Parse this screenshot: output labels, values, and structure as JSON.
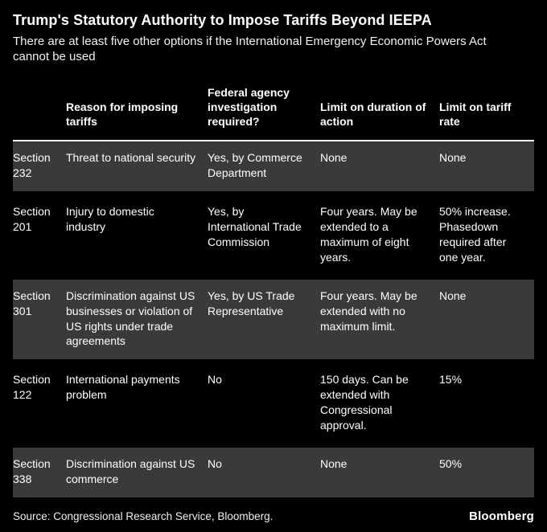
{
  "header": {
    "title": "Trump's Statutory Authority to Impose Tariffs Beyond IEEPA",
    "subtitle": "There are at least five other options if the International Emergency Economic Powers Act cannot be used"
  },
  "footer": {
    "source": "Source: Congressional Research Service, Bloomberg.",
    "brand": "Bloomberg"
  },
  "chart_data": {
    "type": "table",
    "title": "Trump's Statutory Authority to Impose Tariffs Beyond IEEPA",
    "subtitle": "There are at least five other options if the International Emergency Economic Powers Act cannot be used",
    "columns": [
      "",
      "Reason for imposing tariffs",
      "Federal agency investigation required?",
      "Limit on duration of action",
      "Limit on tariff rate"
    ],
    "rows": [
      [
        "Section 232",
        "Threat to national security",
        "Yes, by Commerce Department",
        "None",
        "None"
      ],
      [
        "Section 201",
        "Injury to domestic industry",
        "Yes, by International Trade Commission",
        "Four years. May be extended to a maximum of eight years.",
        "50% increase. Phasedown required after one year."
      ],
      [
        "Section 301",
        "Discrimination against US businesses or violation of US rights under trade agreements",
        "Yes, by US Trade Representative",
        "Four years. May be extended with no maximum limit.",
        "None"
      ],
      [
        "Section 122",
        "International payments problem",
        "No",
        "150 days. Can be extended with Congressional approval.",
        "15%"
      ],
      [
        "Section 338",
        "Discrimination against US commerce",
        "No",
        "None",
        "50%"
      ]
    ],
    "source": "Source: Congressional Research Service, Bloomberg.",
    "brand": "Bloomberg",
    "colors": {
      "background": "#000000",
      "row_alt": "#3a3a3a",
      "text": "#ffffff",
      "divider": "#ffffff"
    },
    "layout": {
      "striped_rows": [
        0,
        2,
        4
      ],
      "header_divider": true,
      "legend": "none"
    }
  }
}
